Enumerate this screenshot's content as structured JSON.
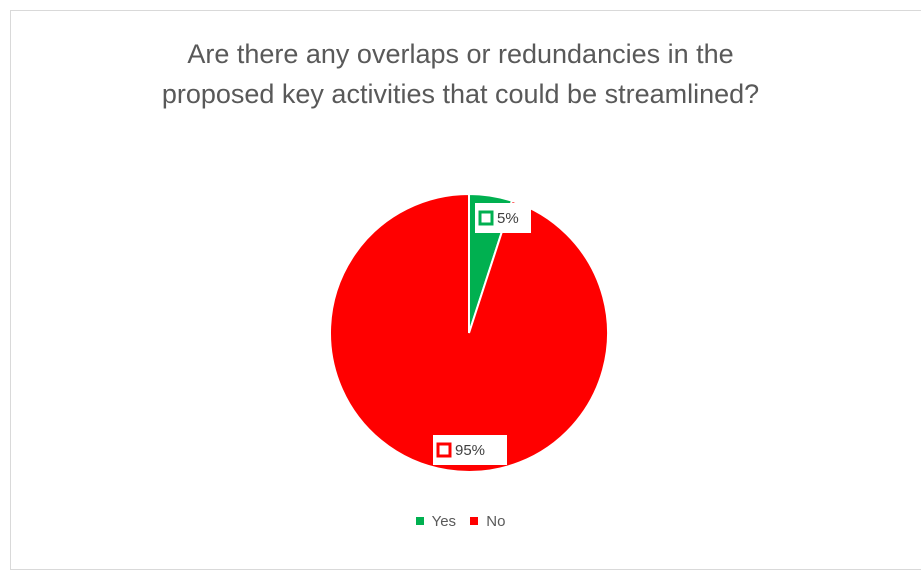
{
  "chart_data": {
    "type": "pie",
    "title_lines": [
      "Are there any overlaps or redundancies in the",
      "proposed key activities that could be streamlined?"
    ],
    "categories": [
      "Yes",
      "No"
    ],
    "values": [
      5,
      95
    ],
    "data_labels": [
      "5%",
      "95%"
    ],
    "colors": [
      "#00b050",
      "#ff0000"
    ],
    "legend_position": "bottom"
  }
}
